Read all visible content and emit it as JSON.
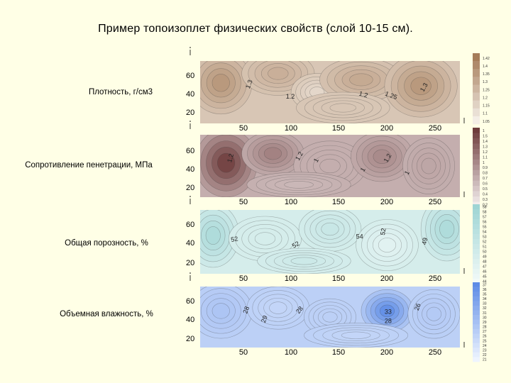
{
  "title": "Пример топоизоплет физических свойств (слой 10-15 см).",
  "panels": [
    {
      "label": "Плотность, г/см3",
      "y_ticks": [
        "60",
        "40",
        "20"
      ],
      "x_ticks": [
        "50",
        "100",
        "150",
        "200",
        "250"
      ],
      "contour_labels": [
        "1.3",
        "1.2",
        "1.2",
        "1.25",
        "1.3"
      ],
      "legend_values": [
        "1.42",
        "1.4",
        "1.35",
        "1.3",
        "1.25",
        "1.2",
        "1.15",
        "1.1",
        "1.05"
      ],
      "colors": {
        "light": "#F4EEE6",
        "dark": "#A57C5A"
      }
    },
    {
      "label": "Сопротивление пенетрации, МПа",
      "y_ticks": [
        "60",
        "40",
        "20"
      ],
      "x_ticks": [
        "50",
        "100",
        "150",
        "200",
        "250"
      ],
      "contour_labels": [
        "1.2",
        "1.2",
        "1",
        "1",
        "1.2",
        "1"
      ],
      "legend_values": [
        "1",
        "1.5",
        "1.4",
        "1.3",
        "1.2",
        "1.1",
        "1",
        "0.9",
        "0.8",
        "0.7",
        "0.6",
        "0.5",
        "0.4",
        "0.3",
        "0.2"
      ],
      "colors": {
        "light": "#F2ECEC",
        "dark": "#6E3C3C"
      }
    },
    {
      "label": "Общая порозность, %",
      "y_ticks": [
        "60",
        "40",
        "20"
      ],
      "x_ticks": [
        "50",
        "100",
        "150",
        "200",
        "250"
      ],
      "contour_labels": [
        "52",
        "52",
        "54",
        "52",
        "49"
      ],
      "legend_values": [
        "58",
        "58",
        "57",
        "56",
        "55",
        "54",
        "53",
        "52",
        "51",
        "50",
        "49",
        "48",
        "47",
        "46",
        "45",
        "44"
      ],
      "colors": {
        "light": "#F2FAF8",
        "dark": "#9ED4D4"
      }
    },
    {
      "label": "Объемная влажность, %",
      "y_ticks": [
        "60",
        "40",
        "20"
      ],
      "x_ticks": [
        "50",
        "100",
        "150",
        "200",
        "250"
      ],
      "contour_labels": [
        "28",
        "29",
        "28",
        "33",
        "28",
        "26"
      ],
      "legend_values": [
        "37",
        "36",
        "35",
        "34",
        "33",
        "32",
        "31",
        "30",
        "29",
        "28",
        "27",
        "26",
        "25",
        "24",
        "23",
        "22",
        "21"
      ],
      "colors": {
        "light": "#EEF4FF",
        "dark": "#5E8CE6"
      }
    }
  ]
}
